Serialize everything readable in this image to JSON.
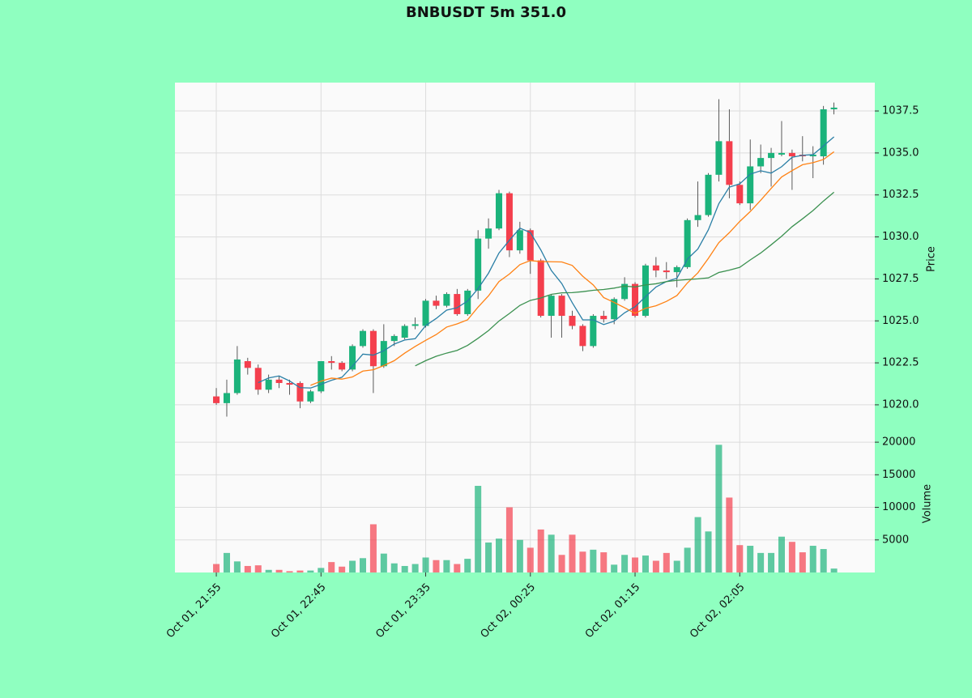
{
  "chart_data": {
    "type": "candlestick",
    "title": "BNBUSDT 5m 351.0",
    "open": [
      1020.5,
      1020.1,
      1020.7,
      1022.6,
      1022.2,
      1020.9,
      1021.5,
      1021.3,
      1021.3,
      1020.2,
      1020.8,
      1022.6,
      1022.5,
      1022.1,
      1023.5,
      1024.4,
      1022.3,
      1023.8,
      1024.0,
      1024.7,
      1024.7,
      1026.2,
      1025.9,
      1026.6,
      1025.4,
      1026.8,
      1029.9,
      1030.5,
      1032.6,
      1029.2,
      1030.4,
      1028.6,
      1025.3,
      1026.5,
      1025.3,
      1024.7,
      1023.5,
      1025.3,
      1025.1,
      1026.3,
      1027.2,
      1025.3,
      1028.3,
      1028.0,
      1027.9,
      1028.2,
      1031.0,
      1031.3,
      1033.7,
      1035.7,
      1033.1,
      1032.0,
      1034.2,
      1034.7,
      1034.9,
      1035.0,
      1034.9,
      1034.8,
      1034.8,
      1037.6
    ],
    "high": [
      1021.0,
      1021.5,
      1023.5,
      1022.8,
      1022.4,
      1021.8,
      1021.7,
      1021.5,
      1021.4,
      1020.9,
      1022.6,
      1022.9,
      1022.6,
      1023.6,
      1024.5,
      1024.5,
      1024.8,
      1024.2,
      1024.8,
      1025.2,
      1026.3,
      1026.5,
      1026.7,
      1026.9,
      1026.9,
      1030.4,
      1031.1,
      1032.8,
      1032.7,
      1030.9,
      1030.5,
      1028.7,
      1026.6,
      1026.6,
      1025.6,
      1024.8,
      1025.4,
      1025.6,
      1026.4,
      1027.6,
      1027.3,
      1028.4,
      1028.8,
      1028.5,
      1028.3,
      1031.1,
      1033.3,
      1033.8,
      1038.2,
      1037.6,
      1033.3,
      1035.8,
      1035.5,
      1035.3,
      1036.9,
      1035.2,
      1036.0,
      1035.4,
      1037.8,
      1038.0
    ],
    "low": [
      1020.0,
      1019.3,
      1020.6,
      1021.8,
      1020.6,
      1020.7,
      1021.0,
      1020.6,
      1019.8,
      1020.1,
      1020.7,
      1022.1,
      1022.0,
      1022.0,
      1023.4,
      1020.7,
      1022.2,
      1023.5,
      1023.9,
      1024.5,
      1024.6,
      1025.7,
      1025.8,
      1025.3,
      1025.3,
      1026.3,
      1029.3,
      1030.4,
      1028.8,
      1029.0,
      1027.8,
      1025.2,
      1024.0,
      1024.0,
      1024.5,
      1023.2,
      1023.4,
      1024.9,
      1024.8,
      1026.2,
      1025.2,
      1025.2,
      1027.6,
      1027.5,
      1027.0,
      1028.1,
      1030.6,
      1031.2,
      1033.3,
      1032.3,
      1031.9,
      1031.6,
      1033.8,
      1033.0,
      1034.8,
      1032.8,
      1034.5,
      1033.5,
      1034.3,
      1037.3
    ],
    "close": [
      1020.1,
      1020.7,
      1022.7,
      1022.2,
      1020.9,
      1021.5,
      1021.3,
      1021.2,
      1020.2,
      1020.8,
      1022.6,
      1022.5,
      1022.1,
      1023.5,
      1024.4,
      1022.3,
      1023.8,
      1024.1,
      1024.7,
      1024.8,
      1026.2,
      1025.9,
      1026.6,
      1025.4,
      1026.8,
      1029.9,
      1030.5,
      1032.6,
      1029.2,
      1030.4,
      1028.6,
      1025.3,
      1026.5,
      1025.3,
      1024.7,
      1023.5,
      1025.3,
      1025.1,
      1026.3,
      1027.2,
      1025.3,
      1028.3,
      1028.0,
      1027.9,
      1028.2,
      1031.0,
      1031.3,
      1033.7,
      1035.7,
      1033.1,
      1032.0,
      1034.2,
      1034.7,
      1035.0,
      1035.0,
      1034.8,
      1034.8,
      1034.9,
      1037.6,
      1037.7
    ],
    "volume": [
      1300,
      3000,
      1700,
      1000,
      1100,
      400,
      400,
      200,
      300,
      300,
      700,
      1600,
      900,
      1800,
      2200,
      7400,
      2900,
      1400,
      1000,
      1300,
      2300,
      1900,
      1900,
      1300,
      2100,
      13300,
      4600,
      5200,
      10000,
      5000,
      3800,
      6600,
      5800,
      2700,
      5800,
      3200,
      3500,
      3100,
      1200,
      2700,
      2300,
      2600,
      1800,
      3000,
      1800,
      3800,
      8500,
      6300,
      19600,
      11500,
      4200,
      4100,
      3000,
      3000,
      5500,
      4700,
      3100,
      4100,
      3600,
      600
    ],
    "up_color": "#1bb37b",
    "down_color": "#f43f4d",
    "moving_averages": [
      {
        "color": "#2a7fa6",
        "values": [
          null,
          null,
          null,
          null,
          1021.32,
          1021.6,
          1021.72,
          1021.42,
          1021.02,
          1021.0,
          1021.22,
          1021.46,
          1021.64,
          1022.3,
          1023.02,
          1022.96,
          1023.22,
          1023.62,
          1023.86,
          1023.94,
          1024.72,
          1025.14,
          1025.64,
          1025.78,
          1026.18,
          1026.92,
          1027.84,
          1029.04,
          1029.8,
          1030.52,
          1030.26,
          1029.22,
          1028.0,
          1027.22,
          1026.08,
          1025.06,
          1025.06,
          1024.78,
          1024.98,
          1025.48,
          1025.84,
          1026.44,
          1027.02,
          1027.34,
          1027.54,
          1028.68,
          1029.28,
          1030.42,
          1031.98,
          1032.96,
          1033.16,
          1033.74,
          1033.94,
          1033.8,
          1034.18,
          1034.74,
          1034.86,
          1034.9,
          1035.42,
          1035.96
        ]
      },
      {
        "color": "#ff8214",
        "values": [
          null,
          null,
          null,
          null,
          null,
          null,
          null,
          null,
          null,
          1021.16,
          1021.41,
          1021.59,
          1021.53,
          1021.66,
          1022.01,
          1022.09,
          1022.34,
          1022.63,
          1023.08,
          1023.48,
          1023.84,
          1024.18,
          1024.63,
          1024.82,
          1025.06,
          1025.82,
          1026.49,
          1027.34,
          1027.79,
          1028.35,
          1028.59,
          1028.53,
          1028.52,
          1028.51,
          1028.3,
          1027.66,
          1027.14,
          1026.39,
          1026.1,
          1025.78,
          1025.45,
          1025.75,
          1025.9,
          1026.16,
          1026.51,
          1027.26,
          1027.86,
          1028.72,
          1029.66,
          1030.25,
          1030.92,
          1031.51,
          1032.18,
          1032.89,
          1033.57,
          1033.95,
          1034.3,
          1034.42,
          1034.61,
          1035.07
        ]
      },
      {
        "color": "#3b9150",
        "values": [
          null,
          null,
          null,
          null,
          null,
          null,
          null,
          null,
          null,
          null,
          null,
          null,
          null,
          null,
          null,
          null,
          null,
          null,
          null,
          1022.32,
          1022.63,
          1022.89,
          1023.08,
          1023.24,
          1023.54,
          1023.96,
          1024.42,
          1024.99,
          1025.44,
          1025.92,
          1026.22,
          1026.36,
          1026.58,
          1026.67,
          1026.68,
          1026.74,
          1026.82,
          1026.87,
          1026.95,
          1027.07,
          1027.02,
          1027.14,
          1027.21,
          1027.34,
          1027.41,
          1027.46,
          1027.5,
          1027.56,
          1027.88,
          1028.02,
          1028.19,
          1028.63,
          1029.04,
          1029.53,
          1030.04,
          1030.61,
          1031.08,
          1031.57,
          1032.14,
          1032.66
        ]
      }
    ],
    "ylabel": "Price",
    "ylim": [
      1018.55,
      1039.19
    ],
    "yticks": [
      {
        "value": 1020,
        "label": "1020.0"
      },
      1022.5,
      {
        "value": 1025,
        "label": "1025.0"
      },
      1027.5,
      {
        "value": 1030,
        "label": "1030.0"
      },
      1032.5,
      {
        "value": 1035,
        "label": "1035.0"
      },
      1037.5
    ],
    "volume_label": "Volume",
    "volume_ylim": [
      0,
      22000
    ],
    "volume_yticks": [
      5000,
      10000,
      15000,
      20000
    ],
    "xlim": [
      -3.95,
      62.9
    ],
    "xticks": [
      {
        "value": 0,
        "label": "Oct 01, 21:55"
      },
      {
        "value": 10,
        "label": "Oct 01, 22:45"
      },
      {
        "value": 20,
        "label": "Oct 01, 23:35"
      },
      {
        "value": 30,
        "label": "Oct 02, 00:25"
      },
      {
        "value": 40,
        "label": "Oct 02, 01:15"
      },
      {
        "value": 50,
        "label": "Oct 02, 02:05"
      }
    ],
    "grid": true
  }
}
